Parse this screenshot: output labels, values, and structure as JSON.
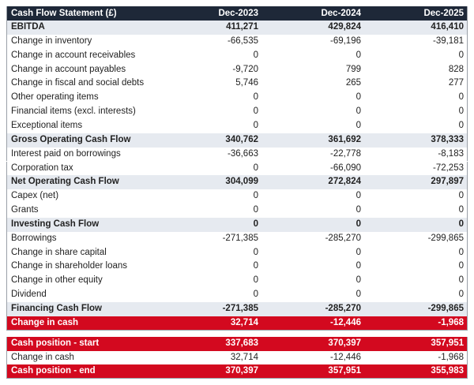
{
  "table": {
    "header": [
      "Cash Flow Statement (£)",
      "Dec-2023",
      "Dec-2024",
      "Dec-2025"
    ],
    "rows": [
      [
        "EBITDA",
        "411,271",
        "429,824",
        "416,410"
      ],
      [
        "Change in inventory",
        "-66,535",
        "-69,196",
        "-39,181"
      ],
      [
        "Change in account receivables",
        "0",
        "0",
        "0"
      ],
      [
        "Change in account payables",
        "-9,720",
        "799",
        "828"
      ],
      [
        "Change in fiscal and social debts",
        "5,746",
        "265",
        "277"
      ],
      [
        "Other operating items",
        "0",
        "0",
        "0"
      ],
      [
        "Financial items (excl. interests)",
        "0",
        "0",
        "0"
      ],
      [
        "Exceptional items",
        "0",
        "0",
        "0"
      ],
      [
        "Gross Operating Cash Flow",
        "340,762",
        "361,692",
        "378,333"
      ],
      [
        "Interest paid on borrowings",
        "-36,663",
        "-22,778",
        "-8,183"
      ],
      [
        "Corporation tax",
        "0",
        "-66,090",
        "-72,253"
      ],
      [
        "Net Operating Cash Flow",
        "304,099",
        "272,824",
        "297,897"
      ],
      [
        "Capex (net)",
        "0",
        "0",
        "0"
      ],
      [
        "Grants",
        "0",
        "0",
        "0"
      ],
      [
        "Investing Cash Flow",
        "0",
        "0",
        "0"
      ],
      [
        "Borrowings",
        "-271,385",
        "-285,270",
        "-299,865"
      ],
      [
        "Change in share capital",
        "0",
        "0",
        "0"
      ],
      [
        "Change in shareholder loans",
        "0",
        "0",
        "0"
      ],
      [
        "Change in other equity",
        "0",
        "0",
        "0"
      ],
      [
        "Dividend",
        "0",
        "0",
        "0"
      ],
      [
        "Financing Cash Flow",
        "-271,385",
        "-285,270",
        "-299,865"
      ],
      [
        "Change in cash",
        "32,714",
        "-12,446",
        "-1,968"
      ],
      [
        "Cash position - start",
        "337,683",
        "370,397",
        "357,951"
      ],
      [
        "Change in cash",
        "32,714",
        "-12,446",
        "-1,968"
      ],
      [
        "Cash position - end",
        "370,397",
        "357,951",
        "355,983"
      ]
    ]
  }
}
